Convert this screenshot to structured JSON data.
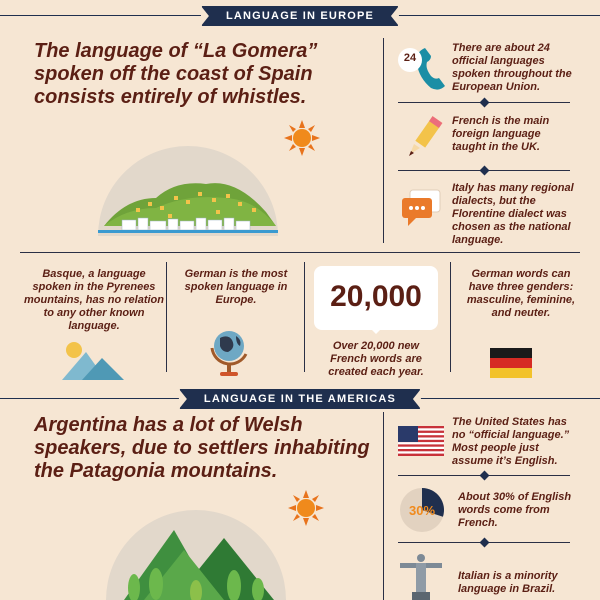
{
  "europe": {
    "banner": "LANGUAGE IN EUROPE",
    "headline": "The language of “La Gomera” spoken off the coast of Spain consists entirely of whistles.",
    "facts": {
      "languages": "There are about 24 official languages spoken throughout the European Union.",
      "phone_badge": "24",
      "french": "French is the main foreign language taught in the UK.",
      "italy": "Italy has many regional dialects, but the Florentine dialect was chosen as the national language.",
      "basque": "Basque, a language spoken in the Pyrenees mountains, has no relation to any other known language.",
      "german_spoken": "German is the most spoken language in Europe.",
      "big_number": "20,000",
      "new_words": "Over 20,000 new French words are created each year.",
      "genders": "German words can have three genders: masculine, feminine, and neuter."
    }
  },
  "americas": {
    "banner": "LANGUAGE IN THE AMERICAS",
    "headline": "Argentina has a lot of Welsh speakers, due to settlers inhabiting the Patagonia mountains.",
    "facts": {
      "us": "The United States has no “official language.” Most people just assume it’s English.",
      "percent_badge": "30%",
      "percent_value": 0.3,
      "english": "About 30% of English words come from French.",
      "brazil": "Italian is a minority language in Brazil."
    }
  },
  "colors": {
    "navy": "#1f2f4e",
    "maroon": "#5b1f14",
    "orange": "#f08a1c",
    "green": "#7aa93c",
    "background": "#f6e6d3"
  },
  "icons": [
    "phone-icon",
    "pencil-icon",
    "chat-bubble-icon",
    "sun-icon",
    "island-icon",
    "mountain-icon",
    "globe-icon",
    "german-flag-icon",
    "us-flag-icon",
    "pie-chart-icon",
    "christ-statue-icon",
    "forest-mountains-icon"
  ]
}
